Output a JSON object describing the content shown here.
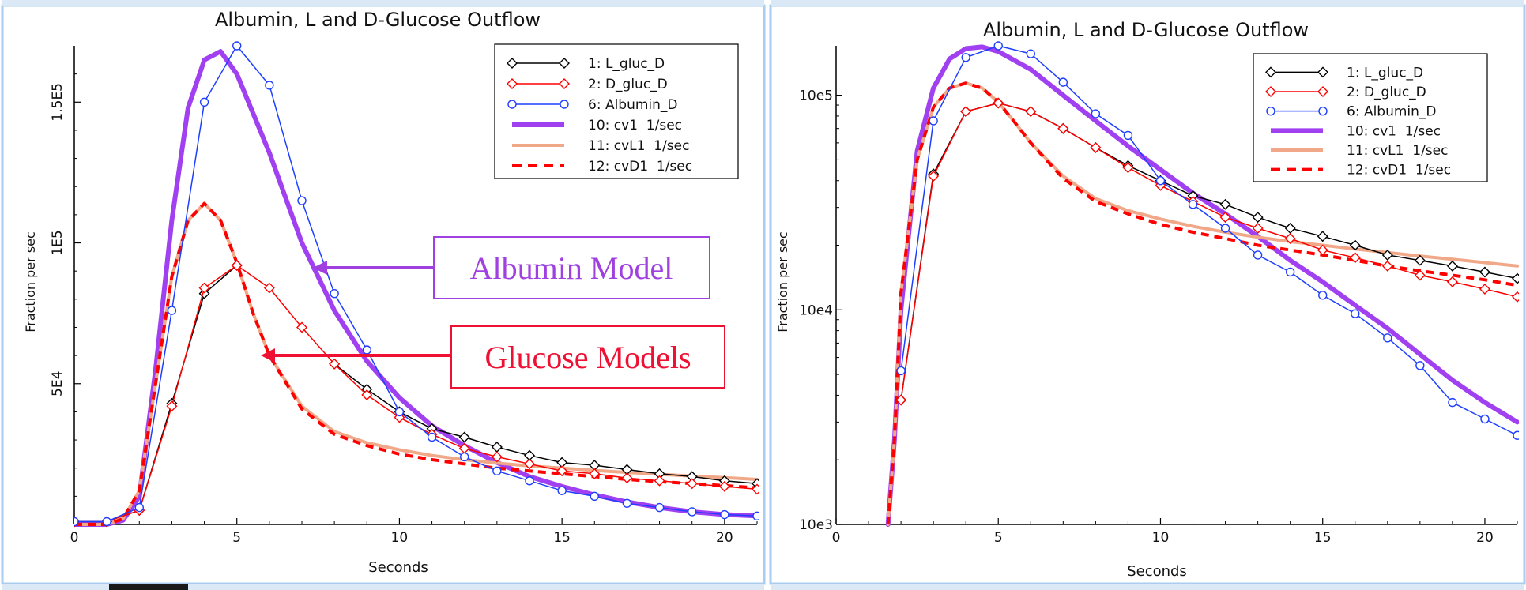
{
  "colors": {
    "frame": "#a9cdee",
    "series_L": "#000000",
    "series_D": "#ff0000",
    "series_Alb": "#1f3fff",
    "model_cv1": "#a040f0",
    "model_cvL1": "#f0a888",
    "model_cvD1": "#ff0000",
    "albumin_annotation": "#a040e0",
    "glucose_annotation": "#ee1133"
  },
  "annotations": {
    "albumin": "Albumin Model",
    "glucose": "Glucose Models"
  },
  "chart_data": [
    {
      "type": "line",
      "title": "Albumin, L and D-Glucose Outflow",
      "xlabel": "Seconds",
      "ylabel": "Fraction per sec",
      "xlim": [
        0,
        21
      ],
      "ylim": [
        0,
        170000
      ],
      "yscale": "linear",
      "x_ticks": [
        0,
        5,
        10,
        15,
        20
      ],
      "x_tick_labels": [
        "0",
        "5",
        "10",
        "15",
        "20"
      ],
      "y_ticks": [
        50000,
        100000,
        150000
      ],
      "y_tick_labels": [
        "5E4",
        "1E5",
        "1.5E5"
      ],
      "grid": false,
      "legend_position": "top-right",
      "legend": [
        "1: L_gluc_D",
        "2: D_gluc_D",
        "6: Albumin_D",
        "10: cv1  1/sec",
        "11: cvL1  1/sec",
        "12: cvD1  1/sec"
      ],
      "series": [
        {
          "name": "1: L_gluc_D",
          "style": "line-marker-diamond",
          "color": "#000000",
          "x": [
            0,
            1,
            2,
            3,
            4,
            5,
            6,
            7,
            8,
            9,
            10,
            11,
            12,
            13,
            14,
            15,
            16,
            17,
            18,
            19,
            20,
            21
          ],
          "y": [
            1000,
            1000,
            5000,
            43000,
            82000,
            92000,
            null,
            null,
            57000,
            48000,
            40000,
            34000,
            31000,
            27500,
            24500,
            22000,
            21000,
            19500,
            18000,
            17000,
            15500,
            14500
          ]
        },
        {
          "name": "2: D_gluc_D",
          "style": "line-marker-diamond",
          "color": "#ff0000",
          "x": [
            0,
            1,
            2,
            3,
            4,
            5,
            6,
            7,
            8,
            9,
            10,
            11,
            12,
            13,
            14,
            15,
            16,
            17,
            18,
            19,
            20,
            21
          ],
          "y": [
            1000,
            1000,
            5000,
            42000,
            84000,
            92000,
            84000,
            70000,
            57000,
            46000,
            38000,
            32000,
            27000,
            24000,
            21500,
            19000,
            18000,
            16500,
            15500,
            14500,
            13500,
            12500
          ]
        },
        {
          "name": "6: Albumin_D",
          "style": "line-marker-circle",
          "color": "#1f3fff",
          "x": [
            0,
            1,
            2,
            3,
            4,
            5,
            6,
            7,
            8,
            9,
            10,
            11,
            12,
            13,
            14,
            15,
            16,
            17,
            18,
            19,
            20,
            21
          ],
          "y": [
            1000,
            1000,
            6000,
            76000,
            150000,
            170000,
            156000,
            115000,
            82000,
            62000,
            40000,
            31000,
            24000,
            19000,
            15500,
            12000,
            10000,
            7500,
            6000,
            4500,
            3500,
            3000
          ]
        },
        {
          "name": "10: cv1  1/sec",
          "style": "thick-line",
          "color": "#a040f0",
          "x": [
            0,
            1,
            1.5,
            2,
            2.5,
            3,
            3.5,
            4,
            4.5,
            5,
            6,
            7,
            8,
            9,
            10,
            11,
            12,
            13,
            14,
            15,
            16,
            17,
            18,
            19,
            20,
            21
          ],
          "y": [
            0,
            0,
            1500,
            10000,
            55000,
            108000,
            148000,
            165000,
            168000,
            160000,
            132000,
            100000,
            76000,
            58000,
            45000,
            35000,
            28000,
            22000,
            17000,
            13500,
            10500,
            8000,
            6000,
            4500,
            3500,
            3000
          ]
        },
        {
          "name": "11: cvL1  1/sec",
          "style": "line",
          "color": "#f0a888",
          "x": [
            0,
            1,
            1.5,
            2,
            2.5,
            3,
            3.5,
            4,
            4.5,
            5,
            5.5,
            6,
            7,
            8,
            9,
            10,
            11,
            12,
            13,
            14,
            15,
            16,
            17,
            18,
            19,
            20,
            21
          ],
          "y": [
            0,
            0,
            2000,
            12000,
            50000,
            88000,
            108000,
            114000,
            108000,
            93000,
            75000,
            60000,
            42000,
            33000,
            29000,
            26500,
            24500,
            23000,
            21800,
            20800,
            20000,
            19200,
            18500,
            17800,
            17200,
            16600,
            16000
          ]
        },
        {
          "name": "12: cvD1  1/sec",
          "style": "dashed-line",
          "color": "#ff0000",
          "x": [
            0,
            1,
            1.5,
            2,
            2.5,
            3,
            3.5,
            4,
            4.5,
            5,
            5.5,
            6,
            7,
            8,
            9,
            10,
            11,
            12,
            13,
            14,
            15,
            16,
            17,
            18,
            19,
            20,
            21
          ],
          "y": [
            0,
            0,
            2000,
            12000,
            50000,
            88000,
            108000,
            114000,
            108000,
            93000,
            75000,
            60000,
            41000,
            32000,
            28000,
            25000,
            23000,
            21500,
            20000,
            19000,
            18000,
            17000,
            16000,
            15200,
            14500,
            13800,
            13000
          ]
        }
      ]
    },
    {
      "type": "line",
      "title": "Albumin, L and D-Glucose Outflow",
      "xlabel": "Seconds",
      "ylabel": "Fraction per sec",
      "xlim": [
        0,
        21
      ],
      "ylim": [
        1000,
        170000
      ],
      "yscale": "log",
      "x_ticks": [
        0,
        5,
        10,
        15,
        20
      ],
      "x_tick_labels": [
        "0",
        "5",
        "10",
        "15",
        "20"
      ],
      "y_ticks": [
        1000,
        10000,
        100000
      ],
      "y_tick_labels": [
        "10e3",
        "10e4",
        "10e5"
      ],
      "grid": false,
      "legend_position": "top-right",
      "legend": [
        "1: L_gluc_D",
        "2: D_gluc_D",
        "6: Albumin_D",
        "10: cv1  1/sec",
        "11: cvL1  1/sec",
        "12: cvD1  1/sec"
      ],
      "series": [
        {
          "name": "1: L_gluc_D",
          "style": "line-marker-diamond",
          "color": "#000000",
          "x": [
            2,
            3,
            4,
            5,
            6,
            7,
            8,
            9,
            10,
            11,
            12,
            13,
            14,
            15,
            16,
            17,
            18,
            19,
            20,
            21
          ],
          "y": [
            3800,
            43000,
            84000,
            92000,
            84000,
            70000,
            57000,
            47000,
            40000,
            34000,
            31000,
            27000,
            24000,
            22000,
            20000,
            18000,
            17000,
            16000,
            15000,
            14000
          ]
        },
        {
          "name": "2: D_gluc_D",
          "style": "line-marker-diamond",
          "color": "#ff0000",
          "x": [
            2,
            3,
            4,
            5,
            6,
            7,
            8,
            9,
            10,
            11,
            12,
            13,
            14,
            15,
            16,
            17,
            18,
            19,
            20,
            21
          ],
          "y": [
            3800,
            42000,
            84000,
            92000,
            84000,
            70000,
            57000,
            46000,
            38000,
            32000,
            27000,
            24000,
            21500,
            19000,
            17500,
            16000,
            14500,
            13500,
            12500,
            11500
          ]
        },
        {
          "name": "6: Albumin_D",
          "style": "line-marker-circle",
          "color": "#1f3fff",
          "x": [
            2,
            3,
            4,
            5,
            6,
            7,
            8,
            9,
            10,
            11,
            12,
            13,
            14,
            15,
            16,
            17,
            18,
            19,
            20,
            21
          ],
          "y": [
            5200,
            76000,
            150000,
            170000,
            156000,
            115000,
            82000,
            65000,
            40000,
            31000,
            24000,
            18000,
            15000,
            11700,
            9600,
            7400,
            5500,
            3700,
            3100,
            2600
          ]
        },
        {
          "name": "10: cv1  1/sec",
          "style": "thick-line",
          "color": "#a040f0",
          "x": [
            1.6,
            1.8,
            2,
            2.5,
            3,
            3.5,
            4,
            4.5,
            5,
            6,
            7,
            8,
            9,
            10,
            11,
            12,
            13,
            14,
            15,
            16,
            17,
            18,
            19,
            20,
            21
          ],
          "y": [
            1000,
            2500,
            10000,
            55000,
            108000,
            148000,
            165000,
            168000,
            160000,
            132000,
            100000,
            76000,
            58000,
            45000,
            35000,
            28000,
            22000,
            17000,
            13500,
            10500,
            8200,
            6200,
            4700,
            3700,
            3000
          ]
        },
        {
          "name": "11: cvL1  1/sec",
          "style": "line",
          "color": "#f0a888",
          "x": [
            1.6,
            1.8,
            2,
            2.5,
            3,
            3.5,
            4,
            4.5,
            5,
            5.5,
            6,
            7,
            8,
            9,
            10,
            11,
            12,
            13,
            14,
            15,
            16,
            17,
            18,
            19,
            20,
            21
          ],
          "y": [
            1000,
            2500,
            12000,
            50000,
            88000,
            108000,
            114000,
            108000,
            93000,
            75000,
            60000,
            42000,
            33000,
            29000,
            26500,
            24500,
            23000,
            21800,
            20800,
            20000,
            19200,
            18500,
            17800,
            17200,
            16600,
            16000
          ]
        },
        {
          "name": "12: cvD1  1/sec",
          "style": "dashed-line",
          "color": "#ff0000",
          "x": [
            1.6,
            1.8,
            2,
            2.5,
            3,
            3.5,
            4,
            4.5,
            5,
            5.5,
            6,
            7,
            8,
            9,
            10,
            11,
            12,
            13,
            14,
            15,
            16,
            17,
            18,
            19,
            20,
            21
          ],
          "y": [
            1000,
            2500,
            12000,
            50000,
            88000,
            108000,
            114000,
            108000,
            93000,
            75000,
            60000,
            41000,
            32000,
            28000,
            25000,
            23000,
            21500,
            20000,
            19000,
            18000,
            17000,
            16000,
            15200,
            14500,
            13800,
            13000
          ]
        }
      ]
    }
  ]
}
